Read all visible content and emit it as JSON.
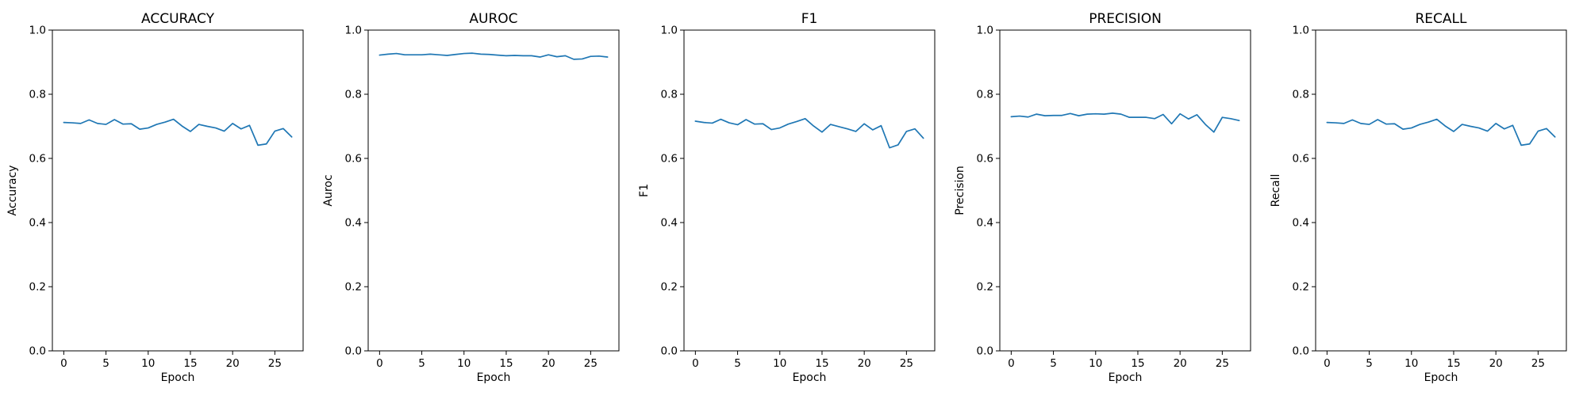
{
  "chart_data": [
    {
      "type": "line",
      "title": "ACCURACY",
      "xlabel": "Epoch",
      "ylabel": "Accuracy",
      "xlim": [
        -1.35,
        28.35
      ],
      "ylim": [
        0.0,
        1.0
      ],
      "xticks": [
        0,
        5,
        10,
        15,
        20,
        25
      ],
      "yticks": [
        0.0,
        0.2,
        0.4,
        0.6,
        0.8,
        1.0
      ],
      "grid": false,
      "legend": "none",
      "color": "#1f77b4",
      "x": [
        0,
        1,
        2,
        3,
        4,
        5,
        6,
        7,
        8,
        9,
        10,
        11,
        12,
        13,
        14,
        15,
        16,
        17,
        18,
        19,
        20,
        21,
        22,
        23,
        24,
        25,
        26,
        27
      ],
      "y": [
        0.712,
        0.711,
        0.709,
        0.72,
        0.709,
        0.706,
        0.721,
        0.707,
        0.708,
        0.691,
        0.695,
        0.706,
        0.713,
        0.722,
        0.701,
        0.684,
        0.706,
        0.7,
        0.695,
        0.685,
        0.709,
        0.692,
        0.703,
        0.641,
        0.645,
        0.685,
        0.693,
        0.667
      ]
    },
    {
      "type": "line",
      "title": "AUROC",
      "xlabel": "Epoch",
      "ylabel": "Auroc",
      "xlim": [
        -1.35,
        28.35
      ],
      "ylim": [
        0.0,
        1.0
      ],
      "xticks": [
        0,
        5,
        10,
        15,
        20,
        25
      ],
      "yticks": [
        0.0,
        0.2,
        0.4,
        0.6,
        0.8,
        1.0
      ],
      "grid": false,
      "legend": "none",
      "color": "#1f77b4",
      "x": [
        0,
        1,
        2,
        3,
        4,
        5,
        6,
        7,
        8,
        9,
        10,
        11,
        12,
        13,
        14,
        15,
        16,
        17,
        18,
        19,
        20,
        21,
        22,
        23,
        24,
        25,
        26,
        27
      ],
      "y": [
        0.922,
        0.925,
        0.927,
        0.923,
        0.923,
        0.923,
        0.925,
        0.923,
        0.921,
        0.924,
        0.927,
        0.928,
        0.925,
        0.924,
        0.922,
        0.92,
        0.921,
        0.92,
        0.92,
        0.916,
        0.923,
        0.917,
        0.92,
        0.909,
        0.91,
        0.918,
        0.919,
        0.916
      ]
    },
    {
      "type": "line",
      "title": "F1",
      "xlabel": "Epoch",
      "ylabel": "F1",
      "xlim": [
        -1.35,
        28.35
      ],
      "ylim": [
        0.0,
        1.0
      ],
      "xticks": [
        0,
        5,
        10,
        15,
        20,
        25
      ],
      "yticks": [
        0.0,
        0.2,
        0.4,
        0.6,
        0.8,
        1.0
      ],
      "grid": false,
      "legend": "none",
      "color": "#1f77b4",
      "x": [
        0,
        1,
        2,
        3,
        4,
        5,
        6,
        7,
        8,
        9,
        10,
        11,
        12,
        13,
        14,
        15,
        16,
        17,
        18,
        19,
        20,
        21,
        22,
        23,
        24,
        25,
        26,
        27
      ],
      "y": [
        0.716,
        0.712,
        0.71,
        0.722,
        0.711,
        0.705,
        0.721,
        0.707,
        0.708,
        0.69,
        0.695,
        0.707,
        0.715,
        0.724,
        0.701,
        0.682,
        0.706,
        0.699,
        0.692,
        0.684,
        0.708,
        0.689,
        0.702,
        0.633,
        0.642,
        0.684,
        0.692,
        0.663
      ]
    },
    {
      "type": "line",
      "title": "PRECISION",
      "xlabel": "Epoch",
      "ylabel": "Precision",
      "xlim": [
        -1.35,
        28.35
      ],
      "ylim": [
        0.0,
        1.0
      ],
      "xticks": [
        0,
        5,
        10,
        15,
        20,
        25
      ],
      "yticks": [
        0.0,
        0.2,
        0.4,
        0.6,
        0.8,
        1.0
      ],
      "grid": false,
      "legend": "none",
      "color": "#1f77b4",
      "x": [
        0,
        1,
        2,
        3,
        4,
        5,
        6,
        7,
        8,
        9,
        10,
        11,
        12,
        13,
        14,
        15,
        16,
        17,
        18,
        19,
        20,
        21,
        22,
        23,
        24,
        25,
        26,
        27
      ],
      "y": [
        0.73,
        0.732,
        0.729,
        0.738,
        0.733,
        0.734,
        0.734,
        0.74,
        0.733,
        0.738,
        0.739,
        0.738,
        0.741,
        0.738,
        0.728,
        0.728,
        0.728,
        0.724,
        0.737,
        0.708,
        0.739,
        0.723,
        0.736,
        0.706,
        0.682,
        0.728,
        0.724,
        0.718
      ]
    },
    {
      "type": "line",
      "title": "RECALL",
      "xlabel": "Epoch",
      "ylabel": "Recall",
      "xlim": [
        -1.35,
        28.35
      ],
      "ylim": [
        0.0,
        1.0
      ],
      "xticks": [
        0,
        5,
        10,
        15,
        20,
        25
      ],
      "yticks": [
        0.0,
        0.2,
        0.4,
        0.6,
        0.8,
        1.0
      ],
      "grid": false,
      "legend": "none",
      "color": "#1f77b4",
      "x": [
        0,
        1,
        2,
        3,
        4,
        5,
        6,
        7,
        8,
        9,
        10,
        11,
        12,
        13,
        14,
        15,
        16,
        17,
        18,
        19,
        20,
        21,
        22,
        23,
        24,
        25,
        26,
        27
      ],
      "y": [
        0.712,
        0.711,
        0.709,
        0.72,
        0.709,
        0.706,
        0.721,
        0.707,
        0.708,
        0.691,
        0.695,
        0.706,
        0.713,
        0.722,
        0.701,
        0.684,
        0.706,
        0.7,
        0.695,
        0.685,
        0.709,
        0.692,
        0.703,
        0.641,
        0.645,
        0.685,
        0.693,
        0.667
      ]
    }
  ]
}
